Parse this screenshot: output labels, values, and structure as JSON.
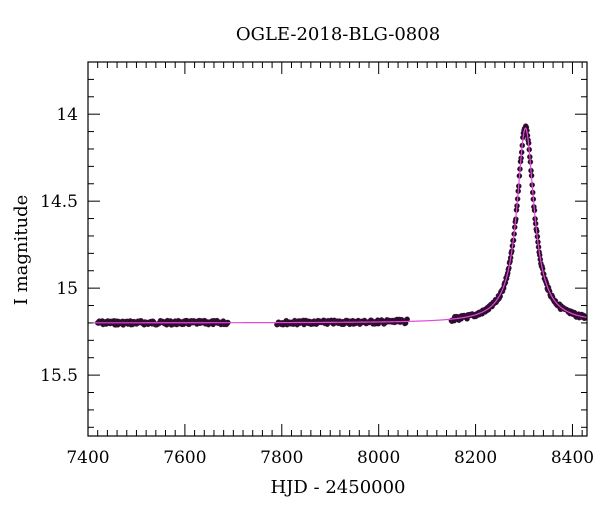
{
  "chart_data": {
    "type": "scatter",
    "title": "OGLE-2018-BLG-0808",
    "xlabel": "HJD - 2450000",
    "ylabel": "I magnitude",
    "xlim": [
      7400,
      8430
    ],
    "ylim": [
      15.85,
      13.7
    ],
    "y_inverted": true,
    "grid": false,
    "legend": "none",
    "x_ticks": [
      7400,
      7600,
      7800,
      8000,
      8200,
      8400
    ],
    "y_ticks": [
      14,
      14.5,
      15,
      15.5
    ],
    "series": [
      {
        "kind": "points",
        "color": "#2a0a2a",
        "segments": [
          {
            "x_start": 7420,
            "x_end": 7690,
            "baseline_mag": 15.2
          },
          {
            "x_start": 7790,
            "x_end": 8060,
            "baseline_mag": 15.2
          },
          {
            "x_start": 8150,
            "x_end": 8425,
            "event": true
          }
        ]
      },
      {
        "kind": "model-line",
        "color": "#e24ad6",
        "event": {
          "t0": 8303,
          "baseline_mag": 15.2,
          "peak_mag": 14.08,
          "width_days": 32
        }
      }
    ]
  }
}
